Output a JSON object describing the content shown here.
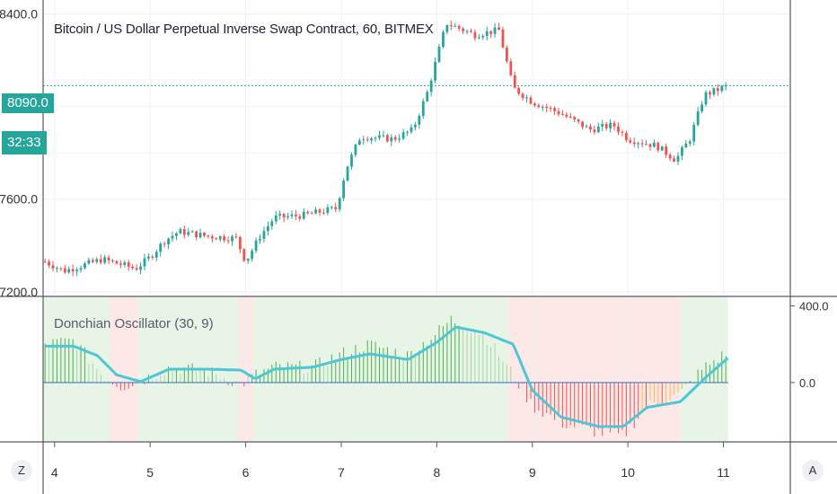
{
  "chart_data": [
    {
      "type": "candlestick",
      "title": "Bitcoin / US Dollar Perpetual Inverse Swap Contract, 60, BITMEX",
      "y_ticks": [
        7200.0,
        7600.0,
        8400.0
      ],
      "y_tick_labels": [
        "7200.0",
        "7600.0",
        "8400.0"
      ],
      "ylim": [
        7180,
        8460
      ],
      "current_price_label": "8090.0",
      "countdown_label": "32:33",
      "x_ticks": [
        4,
        5,
        6,
        7,
        8,
        9,
        10,
        11
      ],
      "xlim": [
        3.88,
        11.7
      ],
      "up_color": "#26a69a",
      "down_color": "#ef5350",
      "keypoints": [
        [
          3.9,
          7330
        ],
        [
          4.1,
          7290
        ],
        [
          4.5,
          7340
        ],
        [
          4.85,
          7300
        ],
        [
          5.0,
          7350
        ],
        [
          5.15,
          7420
        ],
        [
          5.3,
          7460
        ],
        [
          5.6,
          7440
        ],
        [
          5.9,
          7430
        ],
        [
          6.0,
          7330
        ],
        [
          6.15,
          7440
        ],
        [
          6.3,
          7520
        ],
        [
          6.6,
          7530
        ],
        [
          6.95,
          7560
        ],
        [
          7.05,
          7730
        ],
        [
          7.2,
          7870
        ],
        [
          7.55,
          7860
        ],
        [
          7.75,
          7900
        ],
        [
          7.9,
          8060
        ],
        [
          8.1,
          8360
        ],
        [
          8.4,
          8310
        ],
        [
          8.65,
          8330
        ],
        [
          8.8,
          8080
        ],
        [
          9.0,
          8020
        ],
        [
          9.3,
          7970
        ],
        [
          9.6,
          7900
        ],
        [
          9.85,
          7920
        ],
        [
          10.0,
          7860
        ],
        [
          10.3,
          7830
        ],
        [
          10.5,
          7770
        ],
        [
          10.65,
          7860
        ],
        [
          10.8,
          8050
        ],
        [
          11.05,
          8090
        ]
      ]
    },
    {
      "type": "histogram",
      "title": "Donchian Oscillator (30, 9)",
      "y_ticks": [
        0.0,
        400.0
      ],
      "y_tick_labels": [
        "0.0",
        "400.0"
      ],
      "ylim": [
        -310,
        450
      ],
      "signal_line_color": "#4dc6d6",
      "background_zones": [
        {
          "from": 3.88,
          "to": 4.58,
          "color": "green"
        },
        {
          "from": 4.58,
          "to": 4.88,
          "color": "red"
        },
        {
          "from": 4.88,
          "to": 5.92,
          "color": "green"
        },
        {
          "from": 5.92,
          "to": 6.08,
          "color": "red"
        },
        {
          "from": 6.08,
          "to": 8.75,
          "color": "green"
        },
        {
          "from": 8.75,
          "to": 10.55,
          "color": "red"
        },
        {
          "from": 10.55,
          "to": 11.05,
          "color": "green"
        }
      ],
      "signal_keypoints": [
        [
          3.9,
          190
        ],
        [
          4.2,
          190
        ],
        [
          4.45,
          140
        ],
        [
          4.65,
          40
        ],
        [
          4.9,
          5
        ],
        [
          5.2,
          70
        ],
        [
          5.6,
          70
        ],
        [
          5.95,
          65
        ],
        [
          6.1,
          20
        ],
        [
          6.3,
          70
        ],
        [
          6.7,
          80
        ],
        [
          7.0,
          120
        ],
        [
          7.3,
          150
        ],
        [
          7.7,
          120
        ],
        [
          8.0,
          210
        ],
        [
          8.2,
          290
        ],
        [
          8.5,
          260
        ],
        [
          8.8,
          200
        ],
        [
          9.0,
          -40
        ],
        [
          9.3,
          -180
        ],
        [
          9.7,
          -230
        ],
        [
          9.95,
          -230
        ],
        [
          10.2,
          -130
        ],
        [
          10.55,
          -100
        ],
        [
          10.8,
          20
        ],
        [
          11.05,
          130
        ]
      ],
      "osc_keypoints": [
        [
          3.9,
          200
        ],
        [
          4.2,
          220
        ],
        [
          4.5,
          40
        ],
        [
          4.7,
          -20
        ],
        [
          4.9,
          10
        ],
        [
          5.2,
          80
        ],
        [
          5.6,
          60
        ],
        [
          5.95,
          -10
        ],
        [
          6.1,
          40
        ],
        [
          6.3,
          80
        ],
        [
          6.7,
          80
        ],
        [
          7.0,
          150
        ],
        [
          7.3,
          200
        ],
        [
          7.7,
          140
        ],
        [
          8.0,
          260
        ],
        [
          8.15,
          330
        ],
        [
          8.5,
          250
        ],
        [
          8.8,
          40
        ],
        [
          9.0,
          -120
        ],
        [
          9.3,
          -210
        ],
        [
          9.7,
          -260
        ],
        [
          9.95,
          -280
        ],
        [
          10.2,
          -120
        ],
        [
          10.55,
          -60
        ],
        [
          10.8,
          80
        ],
        [
          11.05,
          160
        ]
      ]
    }
  ],
  "controls": {
    "zoom_button_label": "Z",
    "auto_scale_button_label": "A"
  }
}
